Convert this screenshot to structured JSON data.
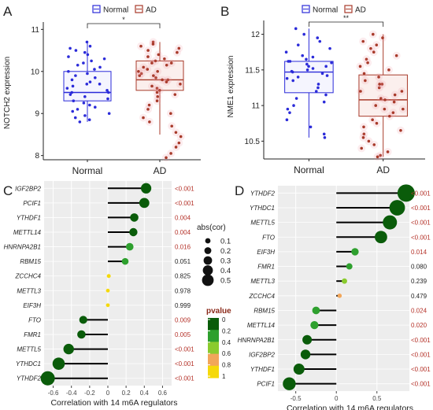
{
  "figure": {
    "panel_labels": [
      "A",
      "B",
      "C",
      "D"
    ],
    "legend_pvalue_title": "pvalue",
    "legend_pvalue_ticks": [
      "0",
      "0.2",
      "0.4",
      "0.6",
      "0.8",
      "1"
    ],
    "legend_size_title": "abs(cor)",
    "legend_size_ticks": [
      "0.1",
      "0.2",
      "0.3",
      "0.4",
      "0.5"
    ],
    "colors": {
      "normal": "#2b2bd9",
      "ad": "#a83a2a",
      "lollipop_line": "#000000",
      "pvalue_scale": [
        "#0a5c0a",
        "#2ea02e",
        "#8acb2e",
        "#f2a65a",
        "#f5d90a"
      ]
    }
  },
  "chart_data": [
    {
      "type": "box",
      "panel": "A",
      "legend": [
        "Normal",
        "AD"
      ],
      "categories": [
        "Normal",
        "AD"
      ],
      "ylabel": "NOTCH2 expression",
      "yticks": [
        8,
        9,
        10,
        11
      ],
      "ylim": [
        7.9,
        11.1
      ],
      "significance": "*",
      "series": [
        {
          "name": "Normal",
          "q1": 9.3,
          "median": 9.5,
          "q3": 10.0,
          "whisker_low": 8.8,
          "whisker_high": 10.7,
          "points": [
            10.7,
            10.6,
            10.55,
            10.5,
            10.45,
            10.4,
            10.35,
            10.3,
            10.25,
            10.2,
            10.15,
            10.1,
            10.05,
            10.0,
            9.95,
            9.9,
            9.85,
            9.8,
            9.75,
            9.7,
            9.65,
            9.6,
            9.55,
            9.5,
            9.45,
            9.4,
            9.35,
            9.3,
            9.25,
            9.2,
            9.15,
            9.1,
            9.05,
            9.0,
            8.95,
            8.9,
            8.85,
            8.8,
            9.5,
            9.7
          ]
        },
        {
          "name": "AD",
          "q1": 9.55,
          "median": 9.8,
          "q3": 10.25,
          "whisker_low": 8.5,
          "whisker_high": 10.7,
          "points": [
            10.7,
            10.65,
            10.6,
            10.55,
            10.5,
            10.45,
            10.4,
            10.35,
            10.3,
            10.25,
            10.2,
            10.15,
            10.1,
            10.05,
            10.0,
            9.95,
            9.9,
            9.85,
            9.8,
            9.75,
            9.7,
            9.65,
            9.6,
            9.55,
            9.5,
            9.45,
            9.4,
            9.3,
            9.2,
            9.1,
            9.0,
            8.9,
            8.8,
            8.7,
            8.55,
            8.45,
            8.3,
            8.2,
            8.05,
            7.95,
            9.8,
            10.0,
            10.2,
            9.9
          ]
        }
      ]
    },
    {
      "type": "box",
      "panel": "B",
      "legend": [
        "Normal",
        "AD"
      ],
      "categories": [
        "Normal",
        "AD"
      ],
      "ylabel": "NME1 expression",
      "yticks": [
        10.5,
        11.0,
        11.5,
        12.0
      ],
      "ylim": [
        10.25,
        12.15
      ],
      "significance": "**",
      "series": [
        {
          "name": "Normal",
          "q1": 11.18,
          "median": 11.47,
          "q3": 11.62,
          "whisker_low": 10.55,
          "whisker_high": 12.08,
          "points": [
            12.08,
            12.0,
            11.95,
            11.9,
            11.85,
            11.8,
            11.75,
            11.7,
            11.68,
            11.65,
            11.62,
            11.6,
            11.58,
            11.55,
            11.52,
            11.5,
            11.48,
            11.45,
            11.42,
            11.4,
            11.38,
            11.35,
            11.3,
            11.25,
            11.2,
            11.15,
            11.1,
            11.05,
            11.0,
            10.95,
            10.9,
            10.8,
            10.7,
            10.6,
            10.55,
            11.47,
            11.55,
            11.62
          ]
        },
        {
          "name": "AD",
          "q1": 10.85,
          "median": 11.08,
          "q3": 11.43,
          "whisker_low": 10.28,
          "whisker_high": 12.0,
          "points": [
            12.0,
            11.95,
            11.9,
            11.85,
            11.8,
            11.75,
            11.7,
            11.65,
            11.6,
            11.55,
            11.5,
            11.45,
            11.4,
            11.35,
            11.3,
            11.25,
            11.2,
            11.15,
            11.1,
            11.05,
            11.0,
            10.95,
            10.9,
            10.85,
            10.8,
            10.75,
            10.7,
            10.65,
            10.6,
            10.55,
            10.5,
            10.45,
            10.4,
            10.35,
            10.3,
            10.28,
            11.08,
            11.2,
            10.95,
            11.3
          ]
        }
      ]
    },
    {
      "type": "lollipop",
      "panel": "C",
      "xlabel": "Correlation with 14 m6A regulators",
      "xticks": [
        -0.6,
        -0.4,
        -0.2,
        0.0,
        0.2,
        0.4,
        0.6
      ],
      "xlim": [
        -0.7,
        0.7
      ],
      "categories": [
        "IGF2BP2",
        "PCIF1",
        "YTHDF1",
        "METTL14",
        "HNRNPA2B1",
        "RBM15",
        "ZCCHC4",
        "METTL3",
        "EIF3H",
        "FTO",
        "FMR1",
        "METTL5",
        "YTHDC1",
        "YTHDF2"
      ],
      "values": [
        0.42,
        0.4,
        0.29,
        0.28,
        0.24,
        0.19,
        0.01,
        0.0,
        0.0,
        -0.27,
        -0.29,
        -0.43,
        -0.54,
        -0.66
      ],
      "pvalue_labels": [
        "<0.001",
        "<0.001",
        "0.004",
        "0.004",
        "0.016",
        "0.051",
        "0.825",
        "0.978",
        "0.999",
        "0.009",
        "0.005",
        "<0.001",
        "<0.001",
        "<0.001"
      ],
      "pvalues": [
        0.0005,
        0.0005,
        0.004,
        0.004,
        0.016,
        0.051,
        0.825,
        0.978,
        0.999,
        0.009,
        0.005,
        0.0005,
        0.0005,
        0.0005
      ]
    },
    {
      "type": "lollipop",
      "panel": "D",
      "xlabel": "Correlation with 14 m6A regulators",
      "xticks": [
        -0.5,
        0.0,
        0.5
      ],
      "xlim": [
        -0.72,
        0.9
      ],
      "categories": [
        "YTHDF2",
        "YTHDC1",
        "METTL5",
        "FTO",
        "EIF3H",
        "FMR1",
        "METTL3",
        "ZCCHC4",
        "RBM15",
        "METTL14",
        "HNRNPA2B1",
        "IGF2BP2",
        "YTHDF1",
        "PCIF1"
      ],
      "values": [
        0.86,
        0.75,
        0.66,
        0.55,
        0.23,
        0.16,
        0.1,
        0.04,
        -0.25,
        -0.27,
        -0.36,
        -0.38,
        -0.46,
        -0.58
      ],
      "pvalue_labels": [
        "<0.001",
        "<0.001",
        "<0.001",
        "<0.001",
        "0.014",
        "0.080",
        "0.239",
        "0.479",
        "0.024",
        "0.020",
        "<0.001",
        "<0.001",
        "<0.001",
        "<0.001"
      ],
      "pvalues": [
        0.0005,
        0.0005,
        0.0005,
        0.0005,
        0.014,
        0.08,
        0.239,
        0.479,
        0.024,
        0.02,
        0.0005,
        0.0005,
        0.0005,
        0.0005
      ]
    }
  ]
}
